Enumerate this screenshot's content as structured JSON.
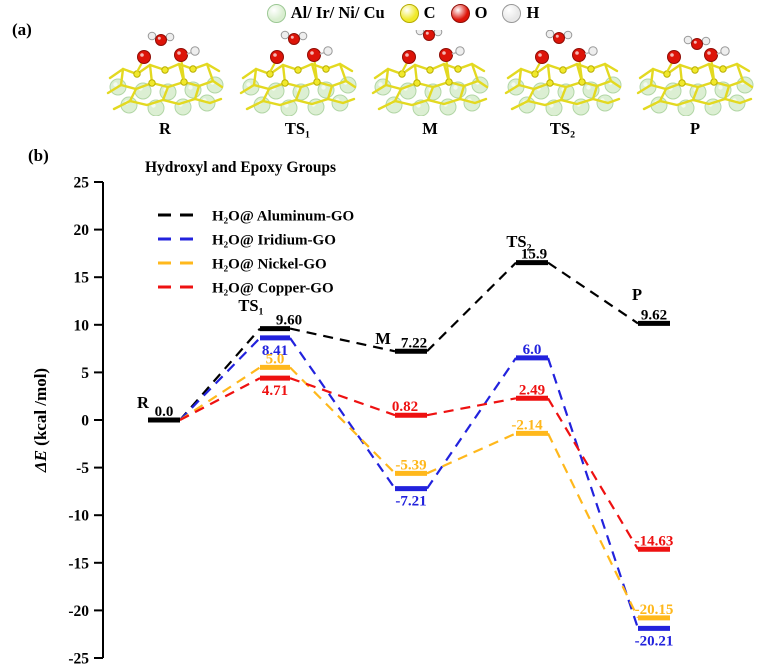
{
  "panel_a": {
    "label": "(a)",
    "atom_legend": {
      "items": [
        {
          "label": "Al/ Ir/ Ni/ Cu",
          "color": "#d9eed0",
          "edge": "#9cc894"
        },
        {
          "label": "C",
          "color": "#f0e929",
          "edge": "#b6ab00"
        },
        {
          "label": "O",
          "color": "#dd1409",
          "edge": "#8f0d06"
        },
        {
          "label": "H",
          "color": "#e8e8e8",
          "edge": "#999999"
        }
      ]
    },
    "structures": [
      {
        "caption": "R"
      },
      {
        "caption": "TS₁"
      },
      {
        "caption": "M"
      },
      {
        "caption": "TS₂"
      },
      {
        "caption": "P"
      }
    ]
  },
  "panel_b": {
    "label": "(b)"
  },
  "chart_data": {
    "type": "line",
    "variant": "reaction-energy-profile",
    "title": "Hydroxyl and Epoxy Groups",
    "ylabel": "ΔE (kcal /mol)",
    "ylim": [
      -25,
      25
    ],
    "ytick_step": 5,
    "yticks": [
      25,
      20,
      15,
      10,
      5,
      0,
      -5,
      -10,
      -15,
      -20,
      -25
    ],
    "grid": false,
    "legend_position": "top-left",
    "line_style": "dashed",
    "stages": [
      "R",
      "TS₁",
      "M",
      "TS₂",
      "P"
    ],
    "series": [
      {
        "name": "H₂O@ Aluminum-GO",
        "key": "aluminum",
        "color": "#000000",
        "values": [
          0.0,
          9.6,
          7.22,
          15.9,
          9.62
        ],
        "labels": [
          "0.0",
          "9.60",
          "7.22",
          "15.9",
          "9.62"
        ]
      },
      {
        "name": "H₂O@ Iridium-GO",
        "key": "iridium",
        "color": "#2222dd",
        "values": [
          0.0,
          8.41,
          -7.21,
          6.0,
          -20.21
        ],
        "labels": [
          null,
          "8.41",
          "-7.21",
          "6.0",
          "-20.21"
        ]
      },
      {
        "name": "H₂O@ Nickel-GO",
        "key": "nickel",
        "color": "#ffb81c",
        "values": [
          0.0,
          5.0,
          -5.39,
          -2.14,
          -20.15
        ],
        "labels": [
          null,
          "5.0",
          "-5.39",
          "-2.14",
          "-20.15"
        ]
      },
      {
        "name": "H₂O@ Copper-GO",
        "key": "copper",
        "color": "#ee1111",
        "values": [
          0.0,
          4.71,
          0.82,
          2.49,
          -14.63
        ],
        "labels": [
          null,
          "4.71",
          "0.82",
          "2.49",
          "-14.63"
        ]
      }
    ]
  }
}
